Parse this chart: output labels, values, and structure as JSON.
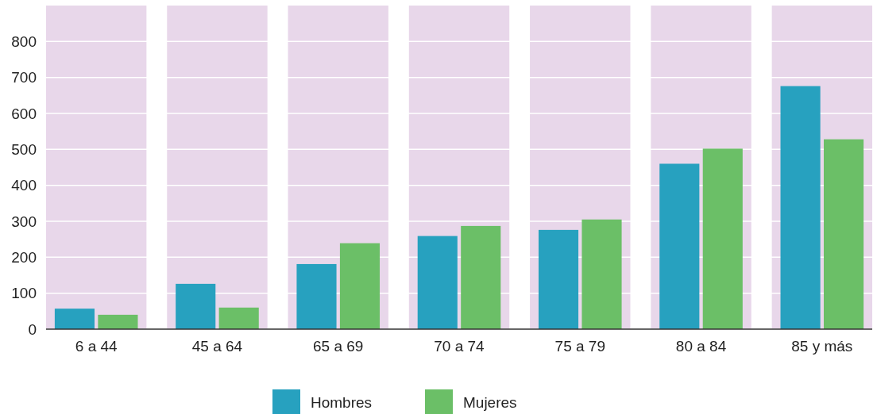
{
  "chart_data": {
    "type": "bar",
    "categories": [
      "6 a 44",
      "45 a 64",
      "65 a 69",
      "70 a 74",
      "75 a 79",
      "80 a 84",
      "85 y más"
    ],
    "series": [
      {
        "name": "Hombres",
        "color": "#27a1bf",
        "values": [
          57,
          126,
          181,
          259,
          276,
          460,
          676
        ]
      },
      {
        "name": "Mujeres",
        "color": "#6bbf67",
        "values": [
          40,
          60,
          239,
          287,
          305,
          502,
          528
        ]
      }
    ],
    "bands": [
      {
        "axis": "x",
        "from": "6 a 44",
        "to": "6 a 44",
        "color": "#e8d7ea"
      },
      {
        "axis": "x",
        "from": "45 a 64",
        "to": "45 a 64",
        "color": "#e8d7ea"
      },
      {
        "axis": "x",
        "from": "65 a 69",
        "to": "65 a 69",
        "color": "#e8d7ea"
      },
      {
        "axis": "x",
        "from": "70 a 74",
        "to": "70 a 74",
        "color": "#e8d7ea"
      },
      {
        "axis": "x",
        "from": "75 a 79",
        "to": "75 a 79",
        "color": "#e8d7ea"
      },
      {
        "axis": "x",
        "from": "80 a 84",
        "to": "80 a 84",
        "color": "#e8d7ea"
      },
      {
        "axis": "x",
        "from": "85 y más",
        "to": "85 y más",
        "color": "#e8d7ea"
      }
    ],
    "ylim": [
      0,
      900
    ],
    "yticks": [
      0,
      100,
      200,
      300,
      400,
      500,
      600,
      700,
      800
    ],
    "grid": "y",
    "legend": "bottom"
  }
}
